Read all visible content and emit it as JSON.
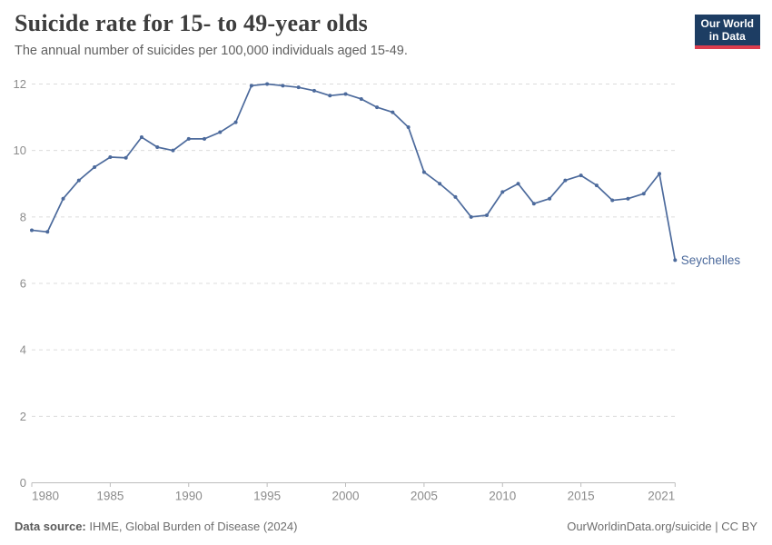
{
  "header": {
    "title": "Suicide rate for 15- to 49-year olds",
    "subtitle": "The annual number of suicides per 100,000 individuals aged 15-49.",
    "logo": {
      "line1": "Our World",
      "line2": "in Data",
      "bg_color": "#1d3d63",
      "accent_color": "#dc3d4e"
    }
  },
  "chart_data": {
    "type": "line",
    "title": "Suicide rate for 15- to 49-year olds",
    "subtitle": "The annual number of suicides per 100,000 individuals aged 15-49.",
    "xlabel": "",
    "ylabel": "",
    "xlim": [
      1980,
      2021
    ],
    "ylim": [
      0,
      12
    ],
    "grid": "horizontal-dashed",
    "legend_position": "end-of-line-label",
    "x_ticks": [
      1980,
      1985,
      1990,
      1995,
      2000,
      2005,
      2010,
      2015,
      2021
    ],
    "y_ticks": [
      0,
      2,
      4,
      6,
      8,
      10,
      12
    ],
    "x": [
      1980,
      1981,
      1982,
      1983,
      1984,
      1985,
      1986,
      1987,
      1988,
      1989,
      1990,
      1991,
      1992,
      1993,
      1994,
      1995,
      1996,
      1997,
      1998,
      1999,
      2000,
      2001,
      2002,
      2003,
      2004,
      2005,
      2006,
      2007,
      2008,
      2009,
      2010,
      2011,
      2012,
      2013,
      2014,
      2015,
      2016,
      2017,
      2018,
      2019,
      2020,
      2021
    ],
    "series": [
      {
        "name": "Seychelles",
        "color": "#4c6a9c",
        "values": [
          7.6,
          7.55,
          8.55,
          9.1,
          9.5,
          9.8,
          9.78,
          10.4,
          10.1,
          10.0,
          10.35,
          10.35,
          10.55,
          10.85,
          11.95,
          12.0,
          11.95,
          11.9,
          11.8,
          11.65,
          11.7,
          11.55,
          11.3,
          11.15,
          10.7,
          9.35,
          9.0,
          8.6,
          8.0,
          8.05,
          8.75,
          9.0,
          8.4,
          8.55,
          9.1,
          9.25,
          8.95,
          8.5,
          8.55,
          8.7,
          9.3,
          6.7
        ]
      }
    ],
    "end_label": "Seychelles"
  },
  "colors": {
    "line": "#4c6a9c",
    "gridline": "#dcdcdc",
    "axis": "#bdbdbd",
    "tick_label": "#8c8c8c"
  },
  "footer": {
    "datasource_label": "Data source:",
    "datasource_value": " IHME, Global Burden of Disease (2024)",
    "attribution": "OurWorldinData.org/suicide | CC BY"
  }
}
